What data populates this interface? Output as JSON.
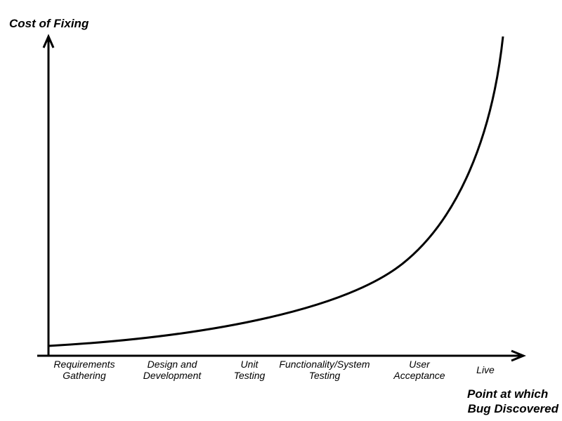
{
  "y_axis_label": "Cost of Fixing",
  "x_axis_label": [
    "Point at which",
    "Bug Discovered"
  ],
  "stages": [
    [
      "Requirements",
      "Gathering"
    ],
    [
      "Design and",
      "Development"
    ],
    [
      "Unit",
      "Testing"
    ],
    [
      "Functionality/System",
      "Testing"
    ],
    [
      "User",
      "Acceptance"
    ],
    [
      "Live"
    ]
  ]
}
